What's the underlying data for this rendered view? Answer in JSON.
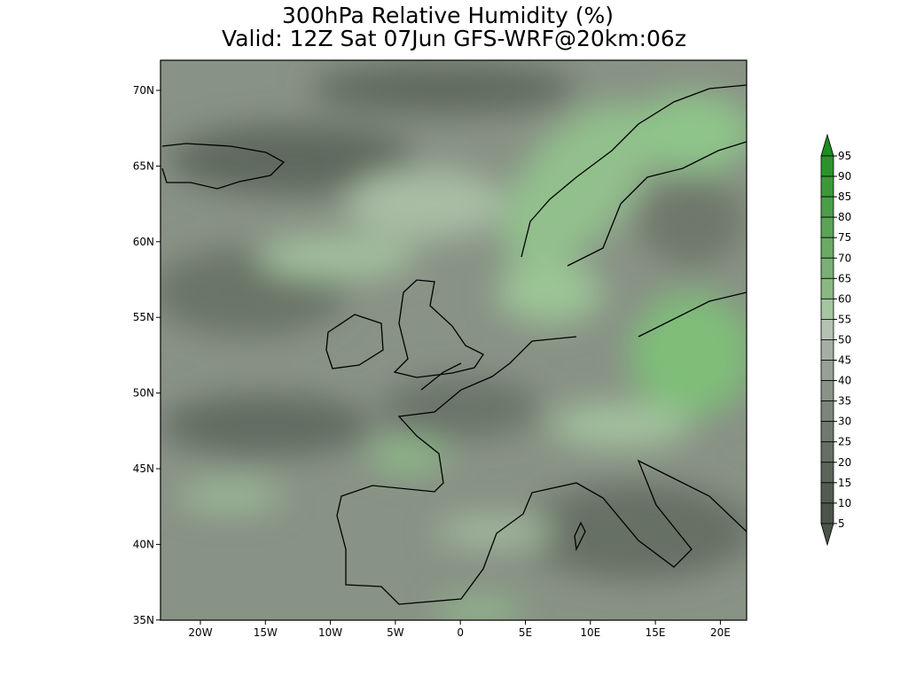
{
  "title": {
    "line1": "300hPa Relative Humidity (%)",
    "line2": "Valid: 12Z Sat 07Jun GFS-WRF@20km:06z"
  },
  "map": {
    "lat_labels": [
      "70N",
      "65N",
      "60N",
      "55N",
      "50N",
      "45N",
      "40N",
      "35N"
    ],
    "lon_labels": [
      "20W",
      "15W",
      "10W",
      "5W",
      "0",
      "5E",
      "10E",
      "15E",
      "20E"
    ]
  },
  "colorbar": {
    "labels": [
      "95",
      "90",
      "85",
      "80",
      "75",
      "70",
      "65",
      "60",
      "55",
      "50",
      "45",
      "40",
      "35",
      "30",
      "25",
      "20",
      "15",
      "10",
      "5"
    ]
  }
}
